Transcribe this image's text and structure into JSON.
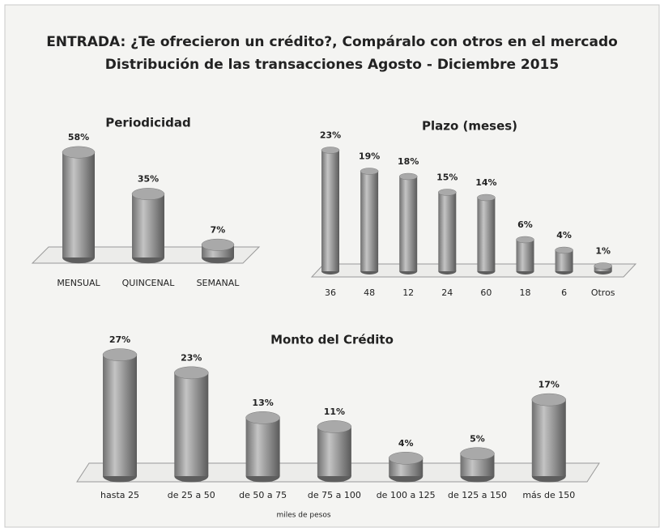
{
  "header": {
    "title": "ENTRADA: ¿Te ofrecieron un crédito?, Compáralo con otros en el mercado",
    "subtitle": "Distribución de las transacciones Agosto - Diciembre 2015"
  },
  "chart_data": [
    {
      "type": "bar",
      "title": "Periodicidad",
      "categories": [
        "MENSUAL",
        "QUINCENAL",
        "SEMANAL"
      ],
      "values": [
        58,
        35,
        7
      ],
      "value_labels": [
        "58%",
        "35%",
        "7%"
      ],
      "color": "#8a8a8a"
    },
    {
      "type": "bar",
      "title": "Plazo (meses)",
      "categories": [
        "36",
        "48",
        "12",
        "24",
        "60",
        "18",
        "6",
        "Otros"
      ],
      "values": [
        23,
        19,
        18,
        15,
        14,
        6,
        4,
        1
      ],
      "value_labels": [
        "23%",
        "19%",
        "18%",
        "15%",
        "14%",
        "6%",
        "4%",
        "1%"
      ],
      "color": "#8a8a8a"
    },
    {
      "type": "bar",
      "title": "Monto del Crédito",
      "x_label": "miles de pesos",
      "categories": [
        "hasta 25",
        "de 25 a 50",
        "de 50 a 75",
        "de 75 a 100",
        "de 100 a 125",
        "de 125 a 150",
        "más de 150"
      ],
      "values": [
        27,
        23,
        13,
        11,
        4,
        5,
        17
      ],
      "value_labels": [
        "27%",
        "23%",
        "13%",
        "11%",
        "4%",
        "5%",
        "17%"
      ],
      "color": "#8a8a8a"
    }
  ]
}
